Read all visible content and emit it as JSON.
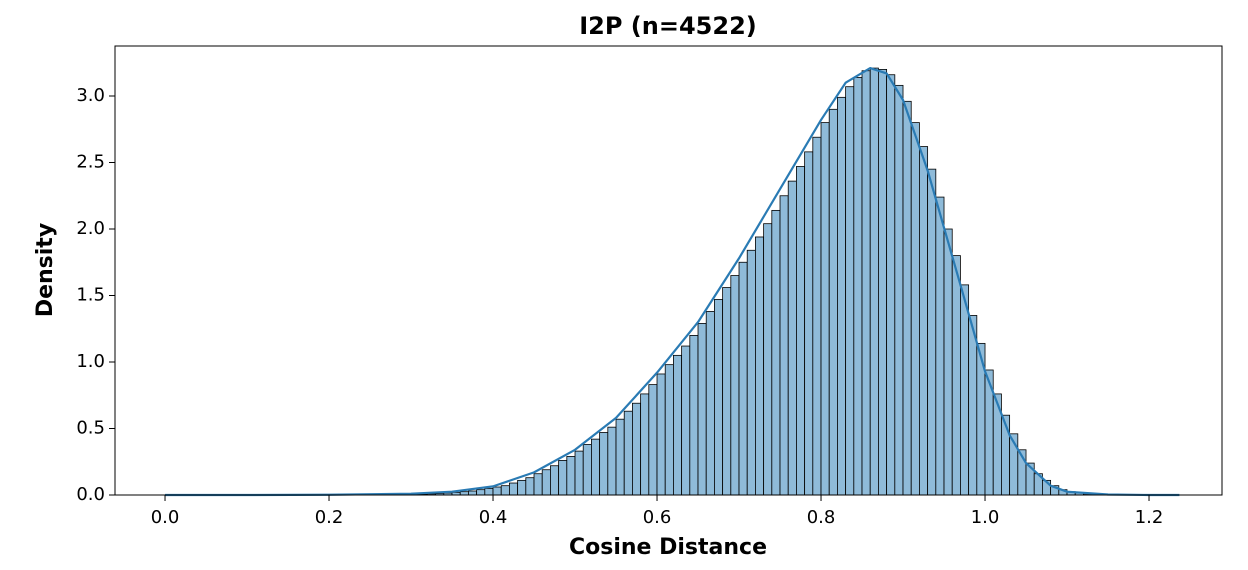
{
  "chart_data": {
    "type": "histogram",
    "title": "I2P (n=4522)",
    "xlabel": "Cosine Distance",
    "ylabel": "Density",
    "bins": [
      0.0,
      0.01,
      0.02,
      0.03,
      0.04,
      0.05,
      0.06,
      0.07,
      0.08,
      0.09,
      0.1,
      0.11,
      0.12,
      0.13,
      0.14,
      0.15,
      0.16,
      0.17,
      0.18,
      0.19,
      0.2,
      0.21,
      0.22,
      0.23,
      0.24,
      0.25,
      0.26,
      0.27,
      0.28,
      0.29,
      0.3,
      0.31,
      0.32,
      0.33,
      0.34,
      0.35,
      0.36,
      0.37,
      0.38,
      0.39,
      0.4,
      0.41,
      0.42,
      0.43,
      0.44,
      0.45,
      0.46,
      0.47,
      0.48,
      0.49,
      0.5,
      0.51,
      0.52,
      0.53,
      0.54,
      0.55,
      0.56,
      0.57,
      0.58,
      0.59,
      0.6,
      0.61,
      0.62,
      0.63,
      0.64,
      0.65,
      0.66,
      0.67,
      0.68,
      0.69,
      0.7,
      0.71,
      0.72,
      0.73,
      0.74,
      0.75,
      0.76,
      0.77,
      0.78,
      0.79,
      0.8,
      0.81,
      0.82,
      0.83,
      0.84,
      0.85,
      0.86,
      0.87,
      0.88,
      0.89,
      0.9,
      0.91,
      0.92,
      0.93,
      0.94,
      0.95,
      0.96,
      0.97,
      0.98,
      0.99,
      1.0,
      1.01,
      1.02,
      1.03,
      1.04,
      1.05,
      1.06,
      1.07,
      1.08,
      1.09,
      1.1,
      1.11,
      1.12,
      1.13,
      1.14,
      1.15,
      1.16,
      1.17,
      1.18,
      1.19,
      1.2,
      1.21,
      1.22,
      1.23
    ],
    "values": [
      0,
      0,
      0,
      0,
      0,
      0,
      0,
      0,
      0,
      0,
      0,
      0,
      0,
      0,
      0,
      0,
      0,
      0,
      0,
      0,
      0,
      0,
      0,
      0,
      0,
      0,
      0,
      0,
      0,
      0,
      0.005,
      0.006,
      0.008,
      0.01,
      0.015,
      0.02,
      0.025,
      0.03,
      0.04,
      0.05,
      0.06,
      0.07,
      0.09,
      0.11,
      0.13,
      0.16,
      0.19,
      0.22,
      0.26,
      0.29,
      0.33,
      0.38,
      0.42,
      0.47,
      0.51,
      0.57,
      0.63,
      0.69,
      0.76,
      0.83,
      0.91,
      0.98,
      1.05,
      1.12,
      1.2,
      1.29,
      1.38,
      1.47,
      1.56,
      1.65,
      1.75,
      1.84,
      1.94,
      2.04,
      2.14,
      2.25,
      2.36,
      2.47,
      2.58,
      2.69,
      2.8,
      2.9,
      2.99,
      3.07,
      3.14,
      3.19,
      3.21,
      3.2,
      3.16,
      3.08,
      2.96,
      2.8,
      2.62,
      2.45,
      2.24,
      2.0,
      1.8,
      1.58,
      1.35,
      1.14,
      0.94,
      0.76,
      0.6,
      0.46,
      0.34,
      0.24,
      0.16,
      0.11,
      0.07,
      0.04,
      0.025,
      0.015,
      0.008,
      0.005,
      0.003,
      0,
      0,
      0,
      0,
      0,
      0,
      0,
      0
    ],
    "color": "#8fbbd9",
    "kde": {
      "color": "#2a7bb4",
      "x": [
        0,
        0.1,
        0.2,
        0.3,
        0.35,
        0.4,
        0.45,
        0.5,
        0.55,
        0.6,
        0.65,
        0.7,
        0.75,
        0.8,
        0.83,
        0.86,
        0.88,
        0.9,
        0.93,
        0.95,
        0.97,
        1.0,
        1.03,
        1.05,
        1.08,
        1.1,
        1.15,
        1.2,
        1.237
      ],
      "values": [
        0,
        0,
        0.002,
        0.01,
        0.025,
        0.065,
        0.17,
        0.34,
        0.58,
        0.92,
        1.3,
        1.78,
        2.3,
        2.82,
        3.1,
        3.21,
        3.17,
        2.97,
        2.44,
        2.01,
        1.58,
        0.93,
        0.45,
        0.24,
        0.07,
        0.025,
        0.004,
        0,
        0
      ]
    },
    "xlim": [
      -0.061,
      1.289
    ],
    "ylim": [
      0,
      3.376
    ],
    "xticks": [
      {
        "value": 0,
        "label": "0.0"
      },
      0.2,
      0.4,
      0.6,
      0.8,
      {
        "value": 1,
        "label": "1.0"
      },
      1.2
    ],
    "yticks": [
      {
        "value": 0,
        "label": "0.0"
      },
      0.5,
      {
        "value": 1,
        "label": "1.0"
      },
      1.5,
      {
        "value": 2,
        "label": "2.0"
      },
      2.5,
      {
        "value": 3,
        "label": "3.0"
      }
    ]
  }
}
